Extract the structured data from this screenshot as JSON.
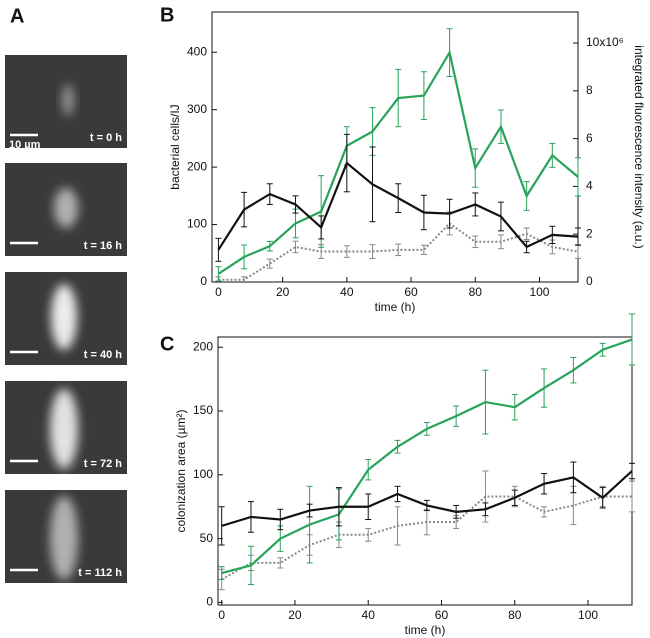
{
  "panel_a": {
    "label": "A",
    "scale_bar": "10 µm",
    "images": [
      "t = 0 h",
      "t = 16 h",
      "t = 40 h",
      "t = 72 h",
      "t = 112 h"
    ]
  },
  "chart_data": [
    {
      "type": "line",
      "panel_label": "B",
      "xlabel": "time (h)",
      "ylabel": "bacterial cells/IJ",
      "y2label": "integrated fluorescence intensity (a.u.)",
      "x": [
        0,
        8,
        16,
        24,
        32,
        40,
        48,
        56,
        64,
        72,
        80,
        88,
        96,
        104,
        112
      ],
      "xlim": [
        -2,
        112
      ],
      "xticks": [
        0,
        20,
        40,
        60,
        80,
        100
      ],
      "ylim": [
        0,
        470
      ],
      "yticks": [
        0,
        100,
        200,
        300,
        400
      ],
      "y2lim": [
        0,
        11.3
      ],
      "y2ticks": [
        0,
        2,
        4,
        6,
        8,
        {
          "value": 10,
          "label": "10x10⁶"
        }
      ],
      "series": [
        {
          "color": "#888888",
          "dashed": true,
          "values": [
            4,
            4,
            32,
            61,
            53,
            53,
            53,
            56,
            56,
            102,
            70,
            70,
            84,
            61,
            53
          ],
          "errors": [
            5,
            5,
            8,
            10,
            12,
            10,
            12,
            10,
            8,
            20,
            10,
            12,
            10,
            12,
            12
          ]
        },
        {
          "color": "#27a35a",
          "axis": "y2",
          "values": [
            0.34,
            1.05,
            1.5,
            2.45,
            2.95,
            5.7,
            6.3,
            7.7,
            7.8,
            9.6,
            4.77,
            6.5,
            3.6,
            5.3,
            4.4
          ],
          "errors": [
            0.3,
            0.5,
            0.2,
            0.6,
            1.5,
            0.8,
            1.0,
            1.2,
            1.0,
            1.0,
            0.8,
            0.7,
            0.6,
            0.5,
            0.8
          ]
        },
        {
          "color": "#111111",
          "values": [
            56,
            126,
            153,
            135,
            95,
            207,
            170,
            146,
            121,
            119,
            135,
            114,
            61,
            82,
            79
          ],
          "errors": [
            20,
            30,
            18,
            15,
            20,
            50,
            65,
            25,
            30,
            25,
            20,
            25,
            10,
            15,
            15
          ]
        }
      ]
    },
    {
      "type": "line",
      "panel_label": "C",
      "xlabel": "time (h)",
      "ylabel": "colonization area (µm²)",
      "x": [
        0,
        8,
        16,
        24,
        32,
        40,
        48,
        56,
        64,
        72,
        80,
        88,
        96,
        104,
        112
      ],
      "xlim": [
        -1,
        112
      ],
      "xticks": [
        0,
        20,
        40,
        60,
        80,
        100
      ],
      "ylim": [
        -2,
        208
      ],
      "yticks": [
        0,
        50,
        100,
        150,
        200
      ],
      "series": [
        {
          "color": "#888888",
          "dashed": true,
          "values": [
            18,
            31,
            31,
            45,
            53,
            53,
            60,
            63,
            63,
            83,
            83,
            71,
            76,
            83,
            83
          ],
          "errors": [
            8,
            6,
            4,
            8,
            10,
            5,
            15,
            10,
            5,
            20,
            8,
            4,
            15,
            8,
            12
          ]
        },
        {
          "color": "#27a35a",
          "values": [
            23,
            29,
            50,
            61,
            69,
            104,
            122,
            136,
            146,
            157,
            153,
            168,
            182,
            198,
            206
          ],
          "errors": [
            5,
            15,
            10,
            30,
            20,
            8,
            5,
            5,
            8,
            25,
            10,
            15,
            10,
            5,
            20
          ]
        },
        {
          "color": "#111111",
          "values": [
            60,
            67,
            65,
            72,
            75,
            75,
            85,
            76,
            71,
            73,
            82,
            93,
            98,
            82,
            103
          ],
          "errors": [
            15,
            12,
            8,
            5,
            15,
            10,
            6,
            4,
            5,
            5,
            6,
            8,
            12,
            8,
            6
          ]
        }
      ]
    }
  ]
}
